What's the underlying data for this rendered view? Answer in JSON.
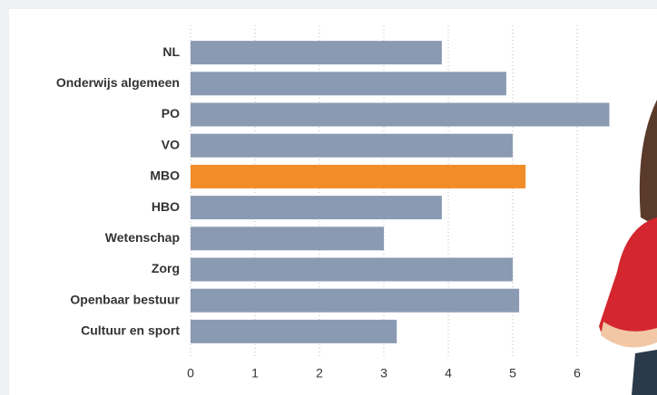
{
  "chart_data": {
    "type": "hbar",
    "categories": [
      "NL",
      "Onderwijs algemeen",
      "PO",
      "VO",
      "MBO",
      "HBO",
      "Wetenschap",
      "Zorg",
      "Openbaar bestuur",
      "Cultuur en sport"
    ],
    "values": [
      3.9,
      4.9,
      6.5,
      5.0,
      5.2,
      3.9,
      3.0,
      5.0,
      5.1,
      3.2
    ],
    "colors": [
      "#8a9ab3",
      "#8a9ab3",
      "#8a9ab3",
      "#8a9ab3",
      "#f28c28",
      "#8a9ab3",
      "#8a9ab3",
      "#8a9ab3",
      "#8a9ab3",
      "#8a9ab3"
    ],
    "xlim": [
      0,
      7
    ],
    "xticks": [
      0,
      1,
      2,
      3,
      4,
      5,
      6
    ],
    "grid": true
  }
}
